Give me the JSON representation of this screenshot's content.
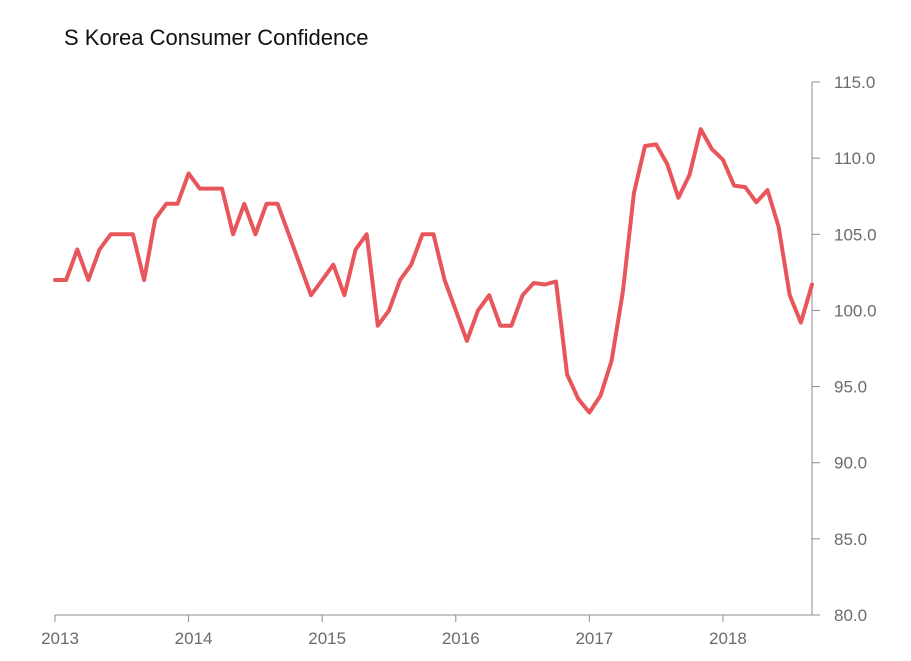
{
  "chart_data": {
    "type": "line",
    "title": "S Korea Consumer Confidence",
    "xlabel": "",
    "ylabel": "",
    "ylim": [
      80,
      115
    ],
    "xlim": [
      "2013-01",
      "2018-09"
    ],
    "x_ticks": [
      "2013",
      "2014",
      "2015",
      "2016",
      "2017",
      "2018"
    ],
    "y_ticks": [
      "80.0",
      "85.0",
      "90.0",
      "95.0",
      "100.0",
      "105.0",
      "110.0",
      "115.0"
    ],
    "grid": false,
    "legend": "none",
    "y_axis_position": "right",
    "line_color": "#e8555a",
    "axis_color": "#8c8c8c",
    "series": [
      {
        "x": [
          "2013-01",
          "2013-02",
          "2013-03",
          "2013-04",
          "2013-05",
          "2013-06",
          "2013-07",
          "2013-08",
          "2013-09",
          "2013-10",
          "2013-11",
          "2013-12",
          "2014-01",
          "2014-02",
          "2014-03",
          "2014-04",
          "2014-05",
          "2014-06",
          "2014-07",
          "2014-08",
          "2014-09",
          "2014-10",
          "2014-11",
          "2014-12",
          "2015-01",
          "2015-02",
          "2015-03",
          "2015-04",
          "2015-05",
          "2015-06",
          "2015-07",
          "2015-08",
          "2015-09",
          "2015-10",
          "2015-11",
          "2015-12",
          "2016-01",
          "2016-02",
          "2016-03",
          "2016-04",
          "2016-05",
          "2016-06",
          "2016-07",
          "2016-08",
          "2016-09",
          "2016-10",
          "2016-11",
          "2016-12",
          "2017-01",
          "2017-02",
          "2017-03",
          "2017-04",
          "2017-05",
          "2017-06",
          "2017-07",
          "2017-08",
          "2017-09",
          "2017-10",
          "2017-11",
          "2017-12",
          "2018-01",
          "2018-02",
          "2018-03",
          "2018-04",
          "2018-05",
          "2018-06",
          "2018-07",
          "2018-08",
          "2018-09"
        ],
        "values": [
          102,
          102,
          104,
          102,
          104,
          105,
          105,
          105,
          102,
          106,
          107,
          107,
          109,
          108,
          108,
          108,
          105,
          107,
          105,
          107,
          107,
          105,
          103,
          101,
          102,
          103,
          101,
          104,
          105,
          99,
          100,
          102,
          103,
          105,
          105,
          102,
          100,
          98,
          100,
          101,
          99,
          99,
          101,
          101.8,
          101.7,
          101.9,
          95.8,
          94.2,
          93.3,
          94.4,
          96.7,
          101.2,
          107.7,
          110.8,
          110.9,
          109.6,
          107.4,
          108.9,
          111.9,
          110.6,
          109.9,
          108.2,
          108.1,
          107.1,
          107.9,
          105.5,
          101,
          99.2,
          101.7
        ]
      }
    ]
  }
}
